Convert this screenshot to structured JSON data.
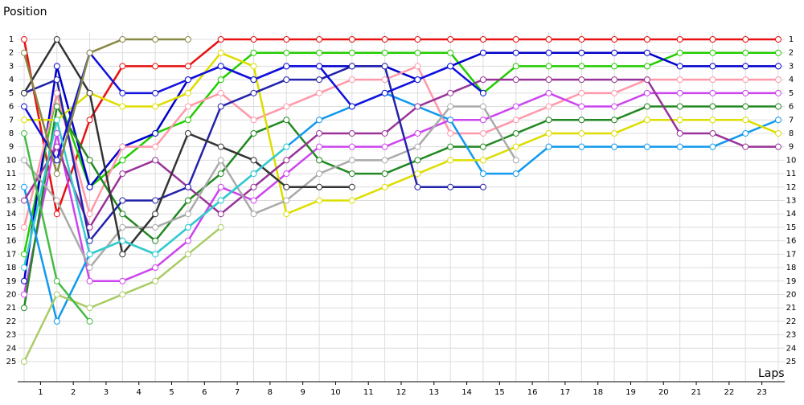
{
  "chart_data": {
    "type": "line",
    "y_label": "Position",
    "x_label": "Laps",
    "x": [
      0,
      1,
      2,
      3,
      4,
      5,
      6,
      7,
      8,
      9,
      10,
      11,
      12,
      13,
      14,
      15,
      16,
      17,
      18,
      19,
      20,
      21,
      22,
      23
    ],
    "xlim": [
      0,
      23
    ],
    "ylim": [
      1,
      25
    ],
    "y_inverted": true,
    "grid": true,
    "xticks": [
      {
        "value": 0.5,
        "label": "1"
      },
      {
        "value": 1.5,
        "label": "2"
      },
      {
        "value": 2.5,
        "label": "3"
      },
      {
        "value": 3.5,
        "label": "4"
      },
      {
        "value": 4.5,
        "label": "5"
      },
      {
        "value": 5.5,
        "label": "6"
      },
      {
        "value": 6.5,
        "label": "7"
      },
      {
        "value": 7.5,
        "label": "8"
      },
      {
        "value": 8.5,
        "label": "9"
      },
      {
        "value": 9.5,
        "label": "10"
      },
      {
        "value": 10.5,
        "label": "11"
      },
      {
        "value": 11.5,
        "label": "12"
      },
      {
        "value": 12.5,
        "label": "13"
      },
      {
        "value": 13.5,
        "label": "14"
      },
      {
        "value": 14.5,
        "label": "15"
      },
      {
        "value": 15.5,
        "label": "16"
      },
      {
        "value": 16.5,
        "label": "17"
      },
      {
        "value": 17.5,
        "label": "18"
      },
      {
        "value": 18.5,
        "label": "19"
      },
      {
        "value": 19.5,
        "label": "20"
      },
      {
        "value": 20.5,
        "label": "21"
      },
      {
        "value": 21.5,
        "label": "22"
      },
      {
        "value": 22.5,
        "label": "23"
      }
    ],
    "yticks": [
      1,
      2,
      3,
      4,
      5,
      6,
      7,
      8,
      9,
      10,
      11,
      12,
      13,
      14,
      15,
      16,
      17,
      18,
      19,
      20,
      21,
      22,
      23,
      24,
      25
    ],
    "series": [
      {
        "color": "#e81010",
        "values": [
          1,
          14,
          7,
          3,
          3,
          3,
          1,
          1,
          1,
          1,
          1,
          1,
          1,
          1,
          1,
          1,
          1,
          1,
          1,
          1,
          1,
          1,
          1,
          1
        ]
      },
      {
        "color": "#22cc00",
        "values": [
          17,
          5,
          12,
          10,
          8,
          7,
          4,
          2,
          2,
          2,
          2,
          2,
          2,
          2,
          5,
          3,
          3,
          3,
          3,
          3,
          2,
          2,
          2,
          2
        ]
      },
      {
        "color": "#0000cc",
        "values": [
          19,
          3,
          12,
          9,
          8,
          4,
          3,
          4,
          3,
          3,
          3,
          3,
          4,
          3,
          2,
          2,
          2,
          2,
          2,
          2,
          3,
          3,
          3,
          3
        ]
      },
      {
        "color": "#ff99aa",
        "values": [
          15,
          5,
          14,
          9,
          9,
          6,
          5,
          7,
          6,
          5,
          4,
          4,
          3,
          8,
          8,
          7,
          6,
          5,
          5,
          4,
          4,
          4,
          4,
          4
        ]
      },
      {
        "color": "#cc44ee",
        "values": [
          20,
          8,
          19,
          19,
          18,
          16,
          12,
          13,
          11,
          9,
          9,
          9,
          8,
          7,
          7,
          6,
          5,
          6,
          6,
          5,
          5,
          5,
          5,
          5
        ]
      },
      {
        "color": "#228822",
        "values": [
          21,
          6,
          10,
          14,
          16,
          13,
          11,
          8,
          7,
          10,
          11,
          11,
          10,
          9,
          9,
          8,
          7,
          7,
          7,
          6,
          6,
          6,
          6,
          6
        ]
      },
      {
        "color": "#1199ee",
        "values": [
          12,
          22,
          17,
          16,
          17,
          15,
          13,
          11,
          9,
          7,
          6,
          5,
          6,
          7,
          11,
          11,
          9,
          9,
          9,
          9,
          9,
          9,
          8,
          7
        ]
      },
      {
        "color": "#dddd00",
        "values": [
          7,
          7,
          5,
          6,
          6,
          5,
          2,
          3,
          14,
          13,
          13,
          12,
          11,
          10,
          10,
          9,
          8,
          8,
          8,
          7,
          7,
          7,
          7,
          8
        ]
      },
      {
        "color": "#993399",
        "values": [
          13,
          9,
          15,
          11,
          10,
          12,
          14,
          12,
          10,
          8,
          8,
          8,
          6,
          5,
          4,
          4,
          4,
          4,
          4,
          4,
          8,
          8,
          9,
          9
        ]
      },
      {
        "color": "#aaaaaa",
        "values": [
          10,
          13,
          18,
          15,
          15,
          14,
          10,
          14,
          13,
          11,
          10,
          10,
          9,
          6,
          6,
          10,
          null,
          null,
          null,
          null,
          null,
          null,
          null,
          null
        ]
      },
      {
        "color": "#2222aa",
        "values": [
          5,
          4,
          16,
          13,
          13,
          12,
          6,
          5,
          4,
          4,
          3,
          3,
          12,
          12,
          12,
          null,
          null,
          null,
          null,
          null,
          null,
          null,
          null,
          null
        ]
      },
      {
        "color": "#1111dd",
        "values": [
          6,
          10,
          2,
          5,
          5,
          4,
          3,
          4,
          3,
          3,
          6,
          5,
          4,
          3,
          5,
          null,
          null,
          null,
          null,
          null,
          null,
          null,
          null,
          null
        ]
      },
      {
        "color": "#333333",
        "values": [
          5,
          1,
          5,
          17,
          14,
          8,
          9,
          10,
          12,
          12,
          12,
          null,
          null,
          null,
          null,
          null,
          null,
          null,
          null,
          null,
          null,
          null,
          null,
          null
        ]
      },
      {
        "color": "#33cccc",
        "values": [
          18,
          7,
          17,
          16,
          17,
          15,
          13,
          11,
          9,
          null,
          null,
          null,
          null,
          null,
          null,
          null,
          null,
          null,
          null,
          null,
          null,
          null,
          null,
          null
        ]
      },
      {
        "color": "#aacc66",
        "values": [
          25,
          20,
          21,
          20,
          19,
          17,
          15,
          null,
          null,
          null,
          null,
          null,
          null,
          null,
          null,
          null,
          null,
          null,
          null,
          null,
          null,
          null,
          null,
          null
        ]
      },
      {
        "color": "#888844",
        "values": [
          2,
          11,
          2,
          1,
          1,
          1,
          null,
          null,
          null,
          null,
          null,
          null,
          null,
          null,
          null,
          null,
          null,
          null,
          null,
          null,
          null,
          null,
          null,
          null
        ]
      },
      {
        "color": "#44bb44",
        "values": [
          8,
          19,
          22,
          null,
          null,
          null,
          null,
          null,
          null,
          null,
          null,
          null,
          null,
          null,
          null,
          null,
          null,
          null,
          null,
          null,
          null,
          null,
          null,
          null
        ]
      }
    ]
  }
}
